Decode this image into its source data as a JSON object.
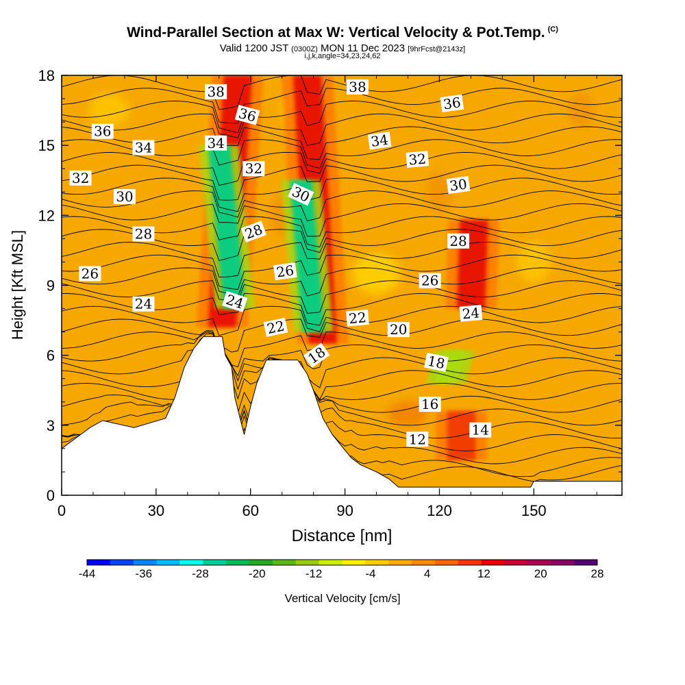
{
  "header": {
    "title": "Wind-Parallel Section at Max W: Vertical Velocity & Pot.Temp.",
    "copyright": "(C)",
    "valid_prefix": "Valid 1200 JST",
    "valid_zulu": "(0300Z)",
    "valid_date": "MON 11 Dec 2023",
    "forecast": "[9hrFcst@2143z]",
    "grid_info": "i,j,k,angle=34,23,24,62"
  },
  "chart_data": {
    "type": "heatmap",
    "xlabel": "Distance [nm]",
    "ylabel": "Height [Kft MSL]",
    "xlim": [
      0,
      178
    ],
    "ylim": [
      0,
      18
    ],
    "x_ticks": [
      "0",
      "30",
      "60",
      "90",
      "120",
      "150"
    ],
    "x_tick_values": [
      0,
      30,
      60,
      90,
      120,
      150
    ],
    "y_ticks": [
      "0",
      "3",
      "6",
      "9",
      "12",
      "15",
      "18"
    ],
    "y_tick_values": [
      0,
      3,
      6,
      9,
      12,
      15,
      18
    ],
    "background_color": "#f6a800",
    "terrain_kft": [
      [
        0,
        2.0
      ],
      [
        3,
        2.3
      ],
      [
        6,
        2.6
      ],
      [
        9,
        2.9
      ],
      [
        13,
        3.2
      ],
      [
        23,
        2.9
      ],
      [
        33,
        3.3
      ],
      [
        36,
        4.2
      ],
      [
        39,
        5.5
      ],
      [
        42,
        6.3
      ],
      [
        45,
        6.8
      ],
      [
        51,
        6.8
      ],
      [
        52,
        6.0
      ],
      [
        54,
        5.5
      ],
      [
        55,
        4.2
      ],
      [
        58,
        2.6
      ],
      [
        60,
        3.8
      ],
      [
        62,
        4.8
      ],
      [
        65,
        5.8
      ],
      [
        75,
        5.8
      ],
      [
        78,
        5.2
      ],
      [
        80,
        4.5
      ],
      [
        83,
        3.3
      ],
      [
        86,
        2.6
      ],
      [
        89,
        2.1
      ],
      [
        92,
        1.6
      ],
      [
        95,
        1.3
      ],
      [
        100,
        1.0
      ],
      [
        104,
        0.7
      ],
      [
        107,
        0.35
      ],
      [
        120,
        0.35
      ],
      [
        140,
        0.35
      ],
      [
        149,
        0.35
      ],
      [
        150,
        0.6
      ],
      [
        178,
        0.6
      ]
    ],
    "contour_series": [
      {
        "label": "12",
        "level_kft": 2.4
      },
      {
        "label": "14",
        "level_kft": 2.8
      },
      {
        "label": "16",
        "level_kft": 3.7
      },
      {
        "label": "18",
        "level_kft": 5.7
      },
      {
        "label": "20",
        "level_kft": 6.8
      },
      {
        "label": "22",
        "level_kft": 7.6
      },
      {
        "label": "24",
        "level_kft": 8.2
      },
      {
        "label": "26",
        "level_kft": 9.6
      },
      {
        "label": "28",
        "level_kft": 11.2
      },
      {
        "label": "30",
        "level_kft": 12.9
      },
      {
        "label": "32",
        "level_kft": 13.7
      },
      {
        "label": "34",
        "level_kft": 15.0
      },
      {
        "label": "36",
        "level_kft": 15.8
      },
      {
        "label": "38",
        "level_kft": 17.0
      }
    ],
    "contour_labels": [
      {
        "text": "38",
        "x": 49,
        "y": 17.3,
        "angle": 0
      },
      {
        "text": "38",
        "x": 94,
        "y": 17.5,
        "angle": 0
      },
      {
        "text": "36",
        "x": 13,
        "y": 15.6,
        "angle": 0
      },
      {
        "text": "36",
        "x": 59,
        "y": 16.3,
        "angle": 15
      },
      {
        "text": "36",
        "x": 124,
        "y": 16.8,
        "angle": -8
      },
      {
        "text": "34",
        "x": 26,
        "y": 14.9,
        "angle": 0
      },
      {
        "text": "34",
        "x": 49,
        "y": 15.1,
        "angle": 0
      },
      {
        "text": "34",
        "x": 101,
        "y": 15.2,
        "angle": -8
      },
      {
        "text": "32",
        "x": 6,
        "y": 13.6,
        "angle": 0
      },
      {
        "text": "32",
        "x": 61,
        "y": 14.0,
        "angle": 0
      },
      {
        "text": "32",
        "x": 113,
        "y": 14.4,
        "angle": -5
      },
      {
        "text": "30",
        "x": 20,
        "y": 12.8,
        "angle": 0
      },
      {
        "text": "30",
        "x": 76,
        "y": 12.9,
        "angle": 25
      },
      {
        "text": "30",
        "x": 126,
        "y": 13.3,
        "angle": -8
      },
      {
        "text": "28",
        "x": 26,
        "y": 11.2,
        "angle": 0
      },
      {
        "text": "28",
        "x": 61,
        "y": 11.3,
        "angle": -20
      },
      {
        "text": "28",
        "x": 126,
        "y": 10.9,
        "angle": 0
      },
      {
        "text": "26",
        "x": 9,
        "y": 9.5,
        "angle": 0
      },
      {
        "text": "26",
        "x": 71,
        "y": 9.6,
        "angle": -8
      },
      {
        "text": "26",
        "x": 117,
        "y": 9.2,
        "angle": 0
      },
      {
        "text": "24",
        "x": 26,
        "y": 8.2,
        "angle": 0
      },
      {
        "text": "24",
        "x": 55,
        "y": 8.3,
        "angle": 18
      },
      {
        "text": "24",
        "x": 130,
        "y": 7.8,
        "angle": -5
      },
      {
        "text": "22",
        "x": 68,
        "y": 7.2,
        "angle": -12
      },
      {
        "text": "22",
        "x": 94,
        "y": 7.6,
        "angle": -5
      },
      {
        "text": "20",
        "x": 107,
        "y": 7.1,
        "angle": 0
      },
      {
        "text": "18",
        "x": 81,
        "y": 6.0,
        "angle": -35
      },
      {
        "text": "18",
        "x": 119,
        "y": 5.7,
        "angle": 12
      },
      {
        "text": "16",
        "x": 117,
        "y": 3.9,
        "angle": 0
      },
      {
        "text": "14",
        "x": 133,
        "y": 2.8,
        "angle": 0
      },
      {
        "text": "12",
        "x": 113,
        "y": 2.4,
        "angle": 0
      }
    ],
    "updraft_bands": [
      {
        "x_bottom": 51,
        "x_top": 56,
        "y_bottom": 7.2,
        "y_top": 18,
        "color": "#e81400"
      },
      {
        "x_bottom": 83,
        "x_top": 78,
        "y_bottom": 6.5,
        "y_top": 18,
        "color": "#e81400"
      },
      {
        "x_bottom": 130,
        "x_top": 131,
        "y_bottom": 8.0,
        "y_top": 11.8,
        "color": "#e81400"
      },
      {
        "x_bottom": 127,
        "x_top": 127,
        "y_bottom": 1.5,
        "y_top": 3.6,
        "color": "#f03c00"
      }
    ],
    "downdraft_bands": [
      {
        "x_bottom": 55,
        "x_top": 50,
        "y_bottom": 8.0,
        "y_top": 15.0,
        "color": "#10cc80"
      },
      {
        "x_bottom": 80,
        "x_top": 76,
        "y_bottom": 7.0,
        "y_top": 13.5,
        "color": "#10cc80"
      },
      {
        "x_bottom": 122,
        "x_top": 125,
        "y_bottom": 4.8,
        "y_top": 6.2,
        "color": "#aadc10"
      }
    ],
    "colorbar": {
      "title": "Vertical Velocity [cm/s]",
      "tick_labels": [
        "-44",
        "-36",
        "-28",
        "-20",
        "-12",
        "-4",
        "4",
        "12",
        "20",
        "28"
      ],
      "colors": [
        "#0000ff",
        "#0044ff",
        "#0088ff",
        "#00bbff",
        "#00ffee",
        "#00cc99",
        "#00bb55",
        "#22aa22",
        "#55bb11",
        "#99cc11",
        "#ccee00",
        "#ffee00",
        "#ffcc00",
        "#ffaa00",
        "#ff8800",
        "#ff6600",
        "#ff3300",
        "#ee0000",
        "#cc0033",
        "#aa0055",
        "#880066",
        "#550077"
      ]
    }
  }
}
